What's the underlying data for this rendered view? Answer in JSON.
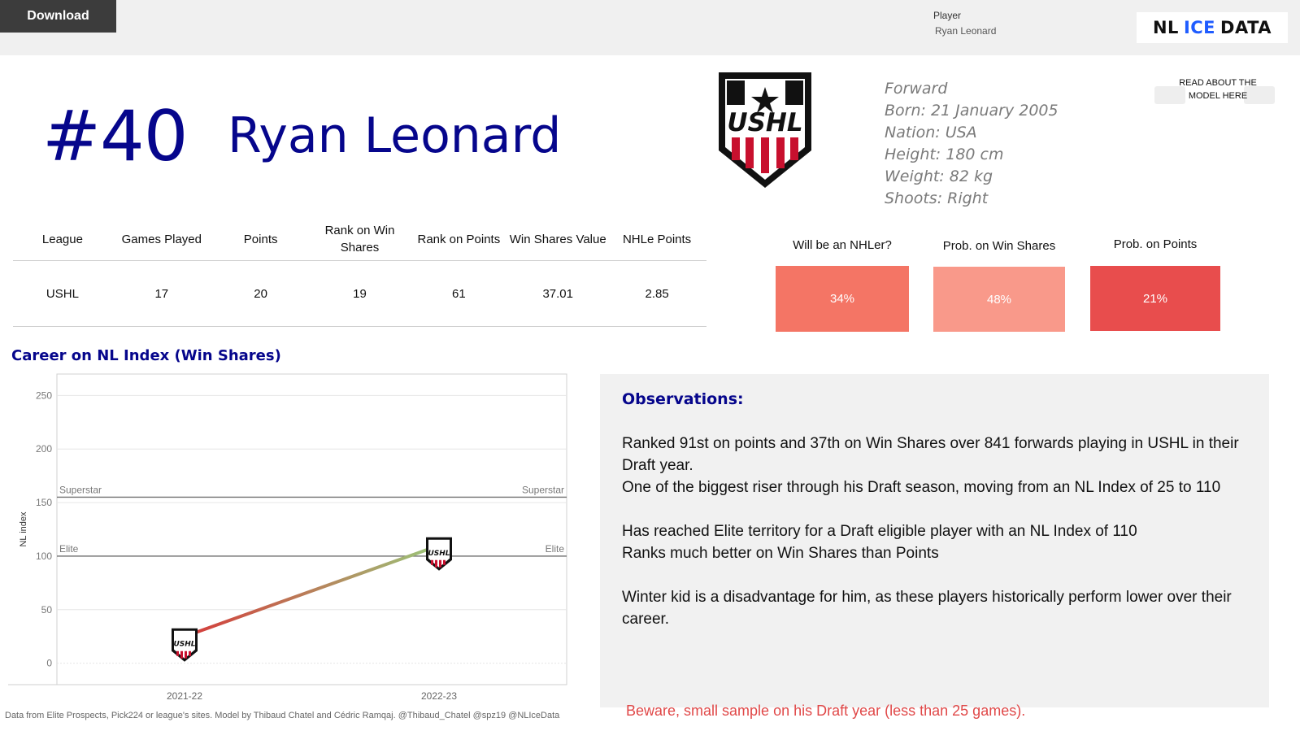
{
  "topbar": {
    "download_label": "Download",
    "player_filter_label": "Player",
    "player_filter_value": "Ryan Leonard",
    "brand": {
      "part1": "NL",
      "part2": "ICE",
      "part3": "DATA"
    }
  },
  "header": {
    "jersey": "#40",
    "name": "Ryan Leonard",
    "league_logo_text": "USHL",
    "bio": {
      "position": "Forward",
      "born": "Born: 21 January 2005",
      "nation": "Nation: USA",
      "height": "Height: 180 cm",
      "weight": "Weight: 82 kg",
      "shoots": "Shoots: Right"
    },
    "read_model_label": "READ ABOUT THE MODEL HERE"
  },
  "stats": {
    "headers": [
      "League",
      "Games Played",
      "Points",
      "Rank on Win Shares",
      "Rank on Points",
      "Win Shares Value",
      "NHLe Points"
    ],
    "values": [
      "USHL",
      "17",
      "20",
      "19",
      "61",
      "37.01",
      "2.85"
    ]
  },
  "probabilities": [
    {
      "title": "Will be an NHLer?",
      "value": "34%",
      "percent": 34,
      "color": "#f47565"
    },
    {
      "title": "Prob. on Win Shares",
      "value": "48%",
      "percent": 48,
      "color": "#f9998a"
    },
    {
      "title": "Prob. on Points",
      "value": "21%",
      "percent": 21,
      "color": "#e84d4d"
    }
  ],
  "chart_data": {
    "type": "line",
    "title": "Career on NL Index (Win Shares)",
    "ylabel": "NL index",
    "xlabel": "",
    "categories": [
      "2021-22",
      "2022-23"
    ],
    "series": [
      {
        "values": [
          25,
          110
        ]
      }
    ],
    "ylim": [
      -20,
      270
    ],
    "yticks": [
      0,
      50,
      100,
      150,
      200,
      250
    ],
    "reference_lines": [
      {
        "label": "Superstar",
        "value": 155
      },
      {
        "label": "Elite",
        "value": 100
      }
    ],
    "marker_label": "USHL",
    "line_colors": [
      "#d63a3a",
      "#9ac77a"
    ],
    "grid": true
  },
  "footnote": "Data from Elite Prospects, Pick224 or league's sites. Model by Thibaud Chatel and Cédric Ramqaj. @Thibaud_Chatel @spz19 @NLIceData",
  "observations": {
    "heading": "Observations:",
    "p1": "Ranked 91st on points and 37th on Win Shares over 841 forwards playing in USHL in their Draft year.",
    "p2": "One of the biggest riser through his Draft season, moving from an NL Index of 25 to 110",
    "p3": "Has reached Elite territory for a Draft eligible player with an NL Index of 110",
    "p4": "Ranks much better on Win Shares than Points",
    "p5": " Winter kid is a disadvantage for him, as these players historically perform lower over their career."
  },
  "warning": "Beware, small sample on his Draft year (less than 25 games)."
}
